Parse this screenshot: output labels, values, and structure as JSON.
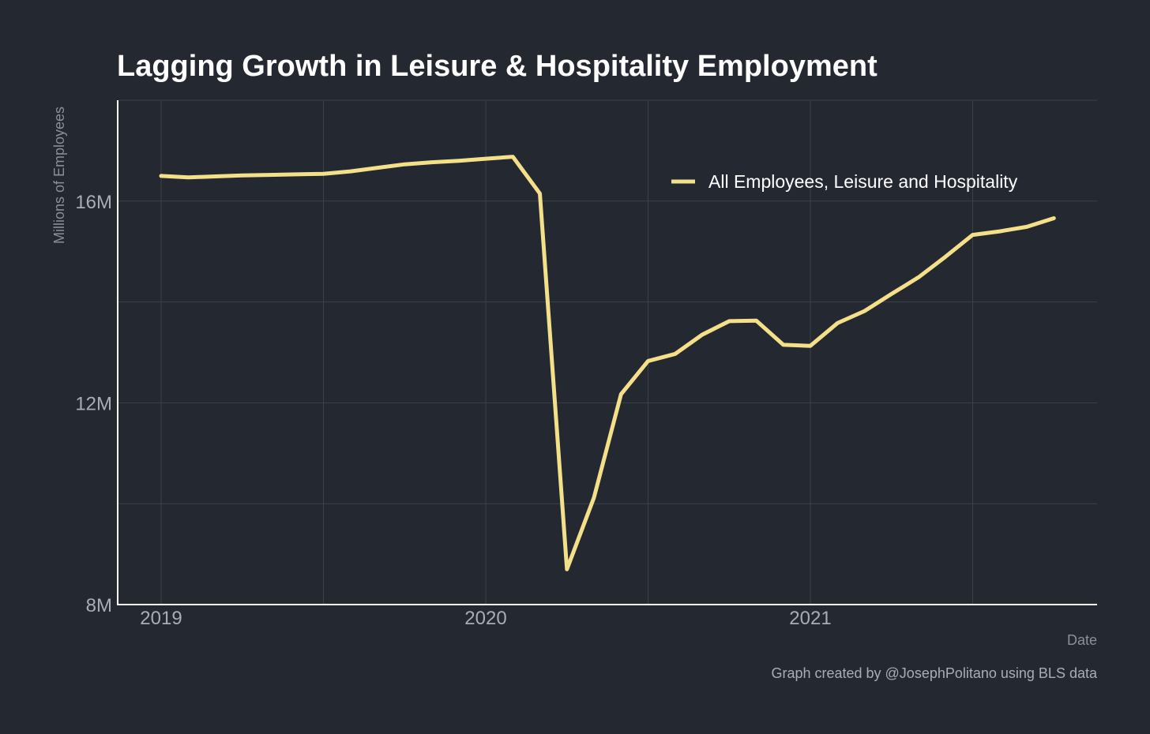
{
  "chart_data": {
    "type": "line",
    "title": "Lagging Growth in Leisure & Hospitality Employment",
    "ylabel": "Millions of Employees",
    "xlabel": "Date",
    "caption": "Graph created by @JosephPolitano using BLS data",
    "ylim": [
      8,
      18
    ],
    "xlim": [
      "2018-11",
      "2021-11"
    ],
    "y_ticks": [
      {
        "value": 8,
        "label": "8M"
      },
      {
        "value": 12,
        "label": "12M"
      },
      {
        "value": 16,
        "label": "16M"
      }
    ],
    "y_minor_gridlines": [
      10,
      14,
      18
    ],
    "x_ticks": [
      {
        "value": "2019-01",
        "label": "2019"
      },
      {
        "value": "2020-01",
        "label": "2020"
      },
      {
        "value": "2021-01",
        "label": "2021"
      }
    ],
    "x_minor_gridlines": [
      "2019-07",
      "2020-07",
      "2021-07"
    ],
    "grid": true,
    "legend_position": "top-right",
    "series": [
      {
        "name": "All Employees, Leisure and Hospitality",
        "color": "#f5e08a",
        "x": [
          "2019-01",
          "2019-02",
          "2019-03",
          "2019-04",
          "2019-05",
          "2019-06",
          "2019-07",
          "2019-08",
          "2019-09",
          "2019-10",
          "2019-11",
          "2019-12",
          "2020-01",
          "2020-02",
          "2020-03",
          "2020-04",
          "2020-05",
          "2020-06",
          "2020-07",
          "2020-08",
          "2020-09",
          "2020-10",
          "2020-11",
          "2020-12",
          "2021-01",
          "2021-02",
          "2021-03",
          "2021-04",
          "2021-05",
          "2021-06",
          "2021-07",
          "2021-08",
          "2021-09",
          "2021-10"
        ],
        "values": [
          16.5,
          16.47,
          16.49,
          16.51,
          16.52,
          16.53,
          16.54,
          16.59,
          16.66,
          16.73,
          16.77,
          16.8,
          16.84,
          16.88,
          16.15,
          8.7,
          10.12,
          12.17,
          12.83,
          12.97,
          13.35,
          13.62,
          13.63,
          13.15,
          13.13,
          13.58,
          13.82,
          14.16,
          14.49,
          14.9,
          15.33,
          15.4,
          15.49,
          15.66
        ]
      }
    ]
  }
}
